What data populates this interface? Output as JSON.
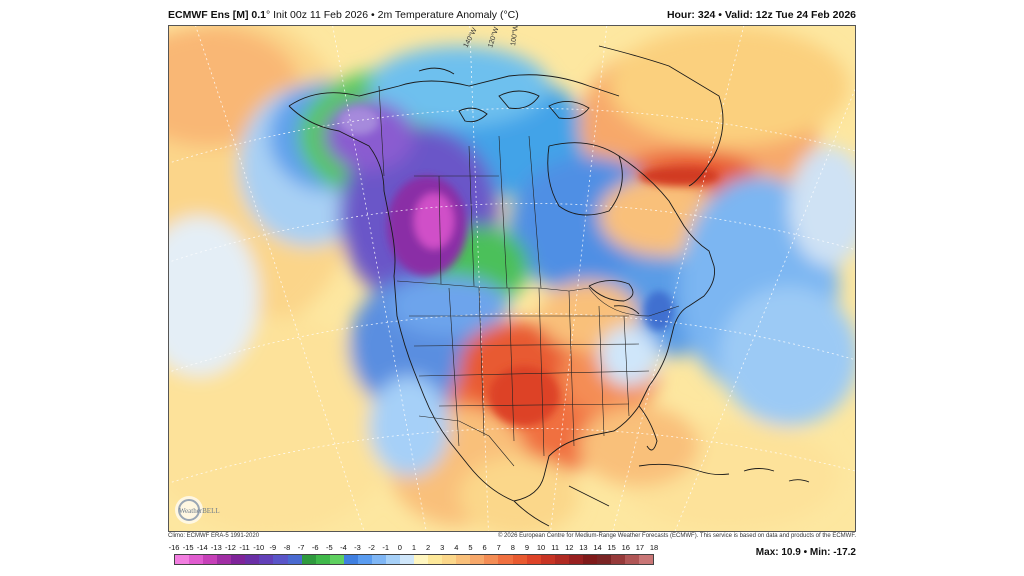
{
  "header": {
    "model": "ECMWF Ens [M] 0.1",
    "init": "° Init 00z 11 Feb 2026 • 2m Temperature Anomaly (°C)",
    "hour_valid": "Hour: 324 • Valid: 12z Tue 24 Feb 2026"
  },
  "footer": {
    "climo": "Climo: ECMWF ERA-5 1991-2020",
    "copyright": "© 2026 European Centre for Medium-Range Weather Forecasts (ECMWF). This service is based on data and products of the ECMWF.",
    "logo_text": "WeatherBELL"
  },
  "map": {
    "longitude_labels": [
      "140°W",
      "120°W",
      "100°W"
    ]
  },
  "colorbar": {
    "ticks": [
      "-16",
      "-15",
      "-14",
      "-13",
      "-12",
      "-11",
      "-10",
      "-9",
      "-8",
      "-7",
      "-6",
      "-5",
      "-4",
      "-3",
      "-2",
      "-1",
      "0",
      "1",
      "2",
      "3",
      "4",
      "5",
      "6",
      "7",
      "8",
      "9",
      "10",
      "11",
      "12",
      "13",
      "14",
      "15",
      "16",
      "17",
      "18"
    ],
    "colors": [
      "#f27ee0",
      "#e05ccf",
      "#c640b8",
      "#a02ea4",
      "#7f249a",
      "#6a2fa6",
      "#6240b8",
      "#5a55c8",
      "#4a6ad0",
      "#2f9a3e",
      "#3fb84a",
      "#5fd060",
      "#3f7fe0",
      "#5a9cf0",
      "#7fb6f5",
      "#a6d0f8",
      "#cfe6fa",
      "#fff6c0",
      "#fde89a",
      "#fbd78a",
      "#f9c07a",
      "#f7a86a",
      "#f48d55",
      "#f07040",
      "#e85a30",
      "#dd4328",
      "#c73424",
      "#b02a22",
      "#982020",
      "#7f1a1a",
      "#7a2424",
      "#963a3a",
      "#b05656",
      "#c97676"
    ]
  },
  "stats": {
    "maxmin": "Max: 10.9 • Min: -17.2"
  }
}
